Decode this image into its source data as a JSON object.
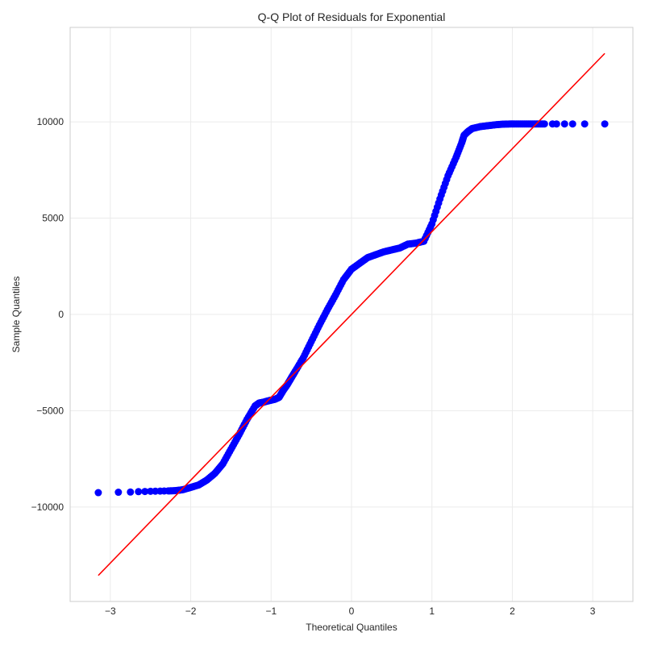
{
  "chart_data": {
    "type": "scatter",
    "title": "Q-Q Plot of Residuals for Exponential",
    "xlabel": "Theoretical Quantiles",
    "ylabel": "Sample Quantiles",
    "xlim": [
      -3.5,
      3.5
    ],
    "ylim": [
      -14900,
      14900
    ],
    "xticks": [
      -3,
      -2,
      -1,
      0,
      1,
      2,
      3
    ],
    "xtick_labels": [
      "−3",
      "−2",
      "−1",
      "0",
      "1",
      "2",
      "3"
    ],
    "yticks": [
      -10000,
      -5000,
      0,
      5000,
      10000
    ],
    "ytick_labels": [
      "−10000",
      "−5000",
      "0",
      "5000",
      "10000"
    ],
    "grid": true,
    "point_color": "#0000ff",
    "line_color": "#ff0000",
    "series": [
      {
        "kind": "points",
        "x": [
          -3.15,
          -2.9,
          -2.75,
          -2.65,
          -2.57,
          -2.5,
          -2.44,
          -2.38,
          -2.33,
          -2.28,
          -2.2,
          -2.1,
          -2.0,
          -1.9,
          -1.8,
          -1.7,
          -1.6,
          -1.5,
          -1.4,
          -1.3,
          -1.2,
          -1.15,
          -1.12,
          -1.1,
          -1.05,
          -1.0,
          -0.95,
          -0.9,
          -0.85,
          -0.8,
          -0.75,
          -0.7,
          -0.6,
          -0.5,
          -0.4,
          -0.3,
          -0.2,
          -0.1,
          0.0,
          0.1,
          0.2,
          0.3,
          0.4,
          0.5,
          0.6,
          0.7,
          0.8,
          0.9,
          1.0,
          1.1,
          1.2,
          1.3,
          1.37,
          1.4,
          1.45,
          1.5,
          1.6,
          1.7,
          1.8,
          1.9,
          2.0,
          2.1,
          2.2,
          2.3,
          2.4,
          2.5,
          2.55,
          2.65,
          2.75,
          2.9,
          3.15
        ],
        "y": [
          -9250,
          -9230,
          -9220,
          -9200,
          -9190,
          -9180,
          -9175,
          -9170,
          -9165,
          -9160,
          -9150,
          -9100,
          -8980,
          -8850,
          -8600,
          -8250,
          -7750,
          -7000,
          -6250,
          -5450,
          -4750,
          -4600,
          -4580,
          -4560,
          -4500,
          -4450,
          -4400,
          -4300,
          -3950,
          -3650,
          -3300,
          -2950,
          -2250,
          -1400,
          -550,
          250,
          1000,
          1800,
          2350,
          2650,
          2950,
          3100,
          3250,
          3350,
          3450,
          3650,
          3700,
          3800,
          4700,
          6000,
          7200,
          8150,
          8900,
          9300,
          9500,
          9650,
          9750,
          9800,
          9850,
          9880,
          9890,
          9890,
          9890,
          9890,
          9890,
          9890,
          9890,
          9890,
          9890,
          9890,
          9890
        ]
      },
      {
        "kind": "line",
        "x": [
          -3.15,
          3.15
        ],
        "y": [
          -13550,
          13550
        ]
      }
    ]
  }
}
